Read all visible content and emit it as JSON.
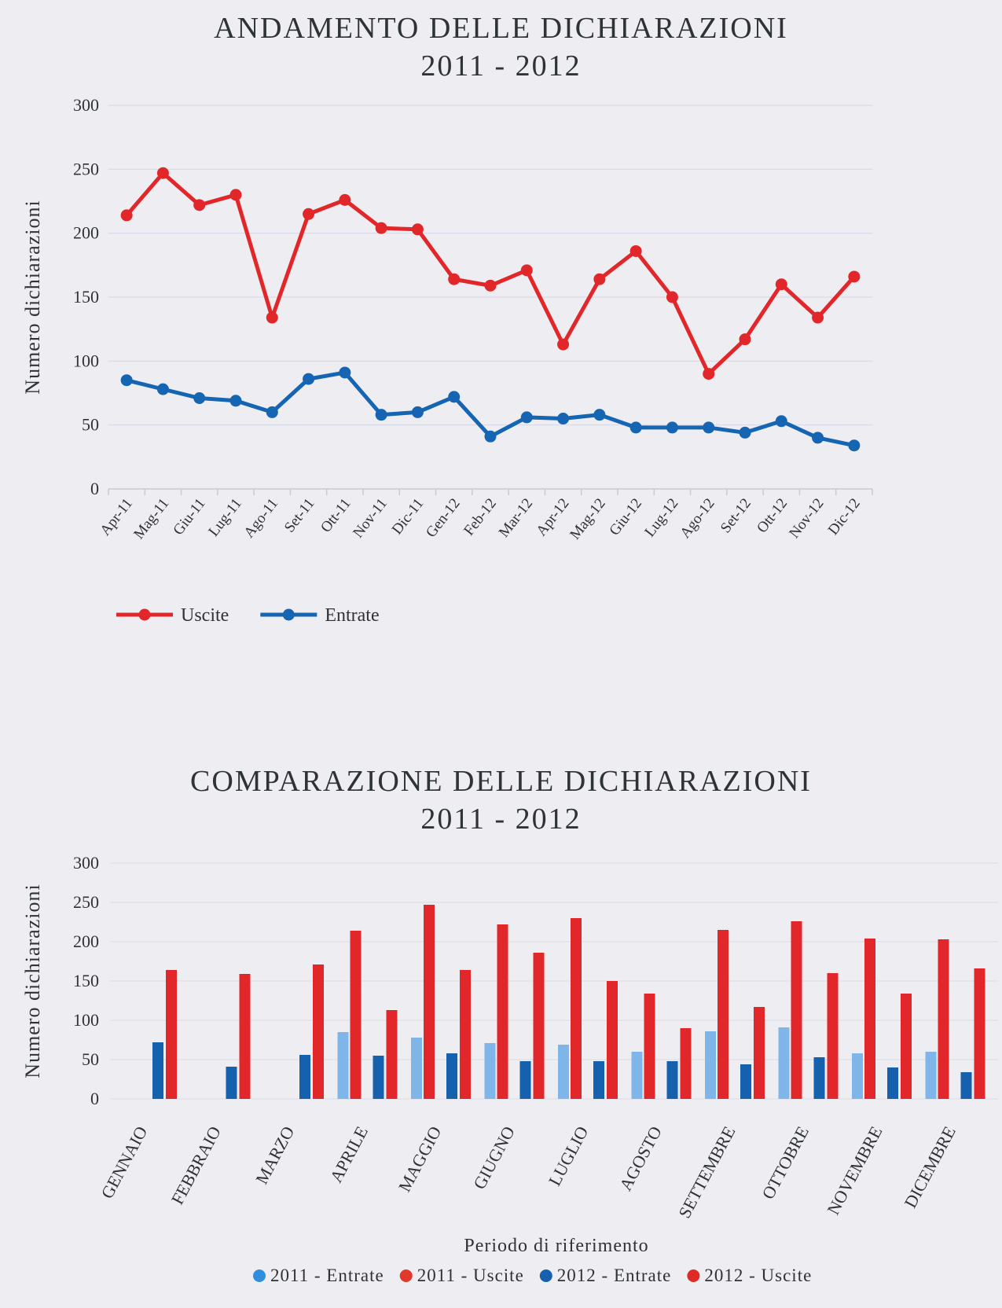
{
  "chart_data": [
    {
      "type": "line",
      "title": "ANDAMENTO DELLE DICHIARAZIONI",
      "subtitle": "2011 - 2012",
      "ylabel": "Numero dichiarazioni",
      "xlabel": "",
      "ylim": [
        0,
        300
      ],
      "yticks": [
        0,
        50,
        100,
        150,
        200,
        250,
        300
      ],
      "grid": true,
      "legend": "bottom-left",
      "categories": [
        "Apr-11",
        "Mag-11",
        "Giu-11",
        "Lug-11",
        "Ago-11",
        "Set-11",
        "Ott-11",
        "Nov-11",
        "Dic-11",
        "Gen-12",
        "Feb-12",
        "Mar-12",
        "Apr-12",
        "Mag-12",
        "Giu-12",
        "Lug-12",
        "Ago-12",
        "Set-12",
        "Ott-12",
        "Nov-12",
        "Dic-12"
      ],
      "series": [
        {
          "name": "Uscite",
          "color": "#e2272b",
          "values": [
            214,
            247,
            222,
            230,
            134,
            215,
            226,
            204,
            203,
            164,
            159,
            171,
            113,
            164,
            186,
            150,
            90,
            117,
            160,
            134,
            166
          ]
        },
        {
          "name": "Entrate",
          "color": "#1565b3",
          "values": [
            85,
            78,
            71,
            69,
            60,
            86,
            91,
            58,
            60,
            72,
            41,
            56,
            55,
            58,
            48,
            48,
            48,
            44,
            53,
            40,
            34
          ]
        }
      ]
    },
    {
      "type": "bar",
      "title": "COMPARAZIONE DELLE DICHIARAZIONI",
      "subtitle": "2011 - 2012",
      "ylabel": "Numero dichiarazioni",
      "xlabel": "Periodo di riferimento",
      "ylim": [
        0,
        300
      ],
      "yticks": [
        0,
        50,
        100,
        150,
        200,
        250,
        300
      ],
      "grid": true,
      "legend": "bottom-center",
      "categories": [
        "GENNAIO",
        "FEBBRAIO",
        "MARZO",
        "APRILE",
        "MAGGIO",
        "GIUGNO",
        "LUGLIO",
        "AGOSTO",
        "SETTEMBRE",
        "OTTOBRE",
        "NOVEMBRE",
        "DICEMBRE"
      ],
      "series": [
        {
          "name": "2011 - Entrate",
          "color": "#7fb6ea",
          "legend_color": "#2f8fdc",
          "values": [
            null,
            null,
            null,
            85,
            78,
            71,
            69,
            60,
            86,
            91,
            58,
            60
          ]
        },
        {
          "name": "2011 - Uscite",
          "color": "#e2272b",
          "legend_color": "#e2372b",
          "values": [
            null,
            null,
            null,
            214,
            247,
            222,
            230,
            134,
            215,
            226,
            204,
            203
          ]
        },
        {
          "name": "2012 - Entrate",
          "color": "#1661ad",
          "legend_color": "#1661ad",
          "values": [
            72,
            41,
            56,
            55,
            58,
            48,
            48,
            48,
            44,
            53,
            40,
            34
          ]
        },
        {
          "name": "2012 - Uscite",
          "color": "#e2272b",
          "legend_color": "#e02a24",
          "values": [
            164,
            159,
            171,
            113,
            164,
            186,
            150,
            90,
            117,
            160,
            134,
            166
          ]
        }
      ]
    }
  ]
}
